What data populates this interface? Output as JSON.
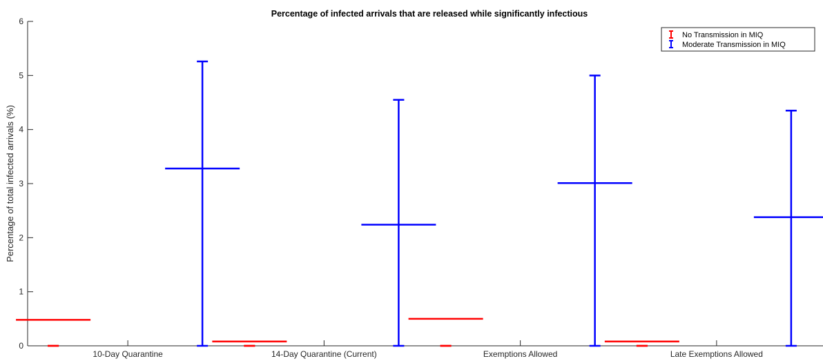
{
  "chart_data": {
    "type": "errorbar",
    "title": "Percentage of infected arrivals that are released while significantly infectious",
    "xlabel": "",
    "ylabel": "Percentage of total infected arrivals (%)",
    "ylim": [
      0,
      6
    ],
    "yticks": [
      "0",
      "1",
      "2",
      "3",
      "4",
      "5",
      "6"
    ],
    "categories": [
      "10-Day Quarantine",
      "14-Day Quarantine (Current)",
      "Exemptions Allowed",
      "Late Exemptions Allowed"
    ],
    "grid": false,
    "legend_position": "top-right",
    "series": [
      {
        "name": "No Transmission in MIQ",
        "color": "#ff0000",
        "means": [
          0.48,
          0.08,
          0.5,
          0.08
        ],
        "lower": [
          0,
          0,
          0,
          0
        ],
        "upper": [
          0,
          0,
          0,
          0
        ]
      },
      {
        "name": "Moderate Transmission in MIQ",
        "color": "#0000ff",
        "means": [
          3.28,
          2.24,
          3.01,
          2.38
        ],
        "lower": [
          0,
          0,
          0,
          0
        ],
        "upper": [
          5.26,
          4.55,
          5.0,
          4.35
        ]
      }
    ]
  }
}
